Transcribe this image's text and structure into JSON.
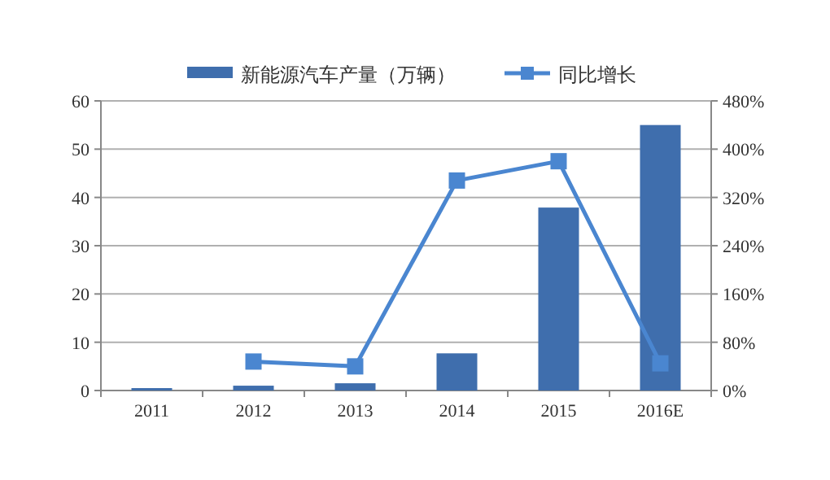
{
  "chart_data": {
    "type": "bar",
    "categories": [
      "2011",
      "2012",
      "2013",
      "2014",
      "2015",
      "2016E"
    ],
    "series": [
      {
        "name": "新能源汽车产量（万辆）",
        "color": "#3f6ead",
        "values": [
          0.5,
          1.0,
          1.5,
          7.7,
          37.9,
          55
        ]
      },
      {
        "name": "同比增长",
        "type": "line",
        "axis": "y2",
        "color": "#4a86d0",
        "marker": "square",
        "values": [
          null,
          48,
          40,
          348,
          380,
          45
        ]
      }
    ],
    "ylim": [
      0,
      60
    ],
    "yticks": [
      0,
      10,
      20,
      30,
      40,
      50,
      60
    ],
    "y2lim": [
      0,
      480
    ],
    "y2ticks": [
      {
        "value": 0,
        "label": "0%"
      },
      {
        "value": 80,
        "label": "80%"
      },
      {
        "value": 160,
        "label": "160%"
      },
      {
        "value": 240,
        "label": "240%"
      },
      {
        "value": 320,
        "label": "320%"
      },
      {
        "value": 400,
        "label": "400%"
      },
      {
        "value": 480,
        "label": "480%"
      }
    ],
    "grid": "y",
    "legend": "top"
  }
}
